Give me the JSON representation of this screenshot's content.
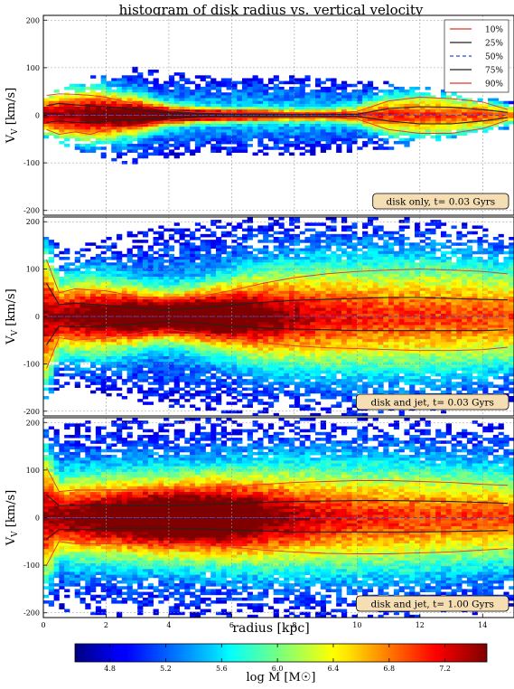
{
  "chart_data": {
    "type": "heatmap",
    "title": "histogram of disk radius vs. vertical velocity",
    "xlabel": "radius [kpc]",
    "ylabel": "V_V [km/s]",
    "xlim": [
      0,
      15
    ],
    "ylim": [
      -210,
      210
    ],
    "x_ticks": [
      0,
      2,
      4,
      6,
      8,
      10,
      12,
      14
    ],
    "y_ticks": [
      -200,
      -100,
      0,
      100,
      200
    ],
    "grid": true,
    "legend_position": "top-right",
    "legend": [
      {
        "label": "10%",
        "color": "#e8332a",
        "style": "solid"
      },
      {
        "label": "25%",
        "color": "#222222",
        "style": "solid"
      },
      {
        "label": "50%",
        "color": "#3347d8",
        "style": "dashed"
      },
      {
        "label": "75%",
        "color": "#222222",
        "style": "solid"
      },
      {
        "label": "90%",
        "color": "#e8332a",
        "style": "solid"
      }
    ],
    "colorbar": {
      "label": "log M [M☉]",
      "min": 4.55,
      "max": 7.5,
      "ticks": [
        4.8,
        5.2,
        5.6,
        6.0,
        6.4,
        6.8,
        7.2
      ]
    },
    "panels": [
      {
        "annotation": "disk only, t= 0.03 Gyrs",
        "x": [
          0.1,
          0.5,
          1,
          1.5,
          2,
          2.5,
          3,
          3.5,
          4,
          5,
          6,
          7,
          8,
          9,
          10,
          11,
          12,
          13,
          14,
          14.8
        ],
        "p10": [
          -30,
          -40,
          -35,
          -40,
          -30,
          -25,
          -22,
          -15,
          -10,
          -6,
          -5,
          -5,
          -4,
          -5,
          -8,
          -30,
          -38,
          -38,
          -28,
          -10
        ],
        "p25": [
          -15,
          -12,
          -15,
          -15,
          -13,
          -10,
          -10,
          -6,
          -4,
          -3,
          -2,
          -2,
          -2,
          -2,
          -2,
          -12,
          -18,
          -18,
          -12,
          -5
        ],
        "p50": [
          0,
          0,
          0,
          0,
          0,
          0,
          0,
          0,
          0,
          0,
          0,
          0,
          0,
          0,
          0,
          0,
          0,
          0,
          0,
          0
        ],
        "p75": [
          20,
          25,
          22,
          20,
          18,
          15,
          12,
          8,
          5,
          3,
          2,
          2,
          2,
          2,
          2,
          14,
          18,
          17,
          12,
          6
        ],
        "p90": [
          42,
          45,
          44,
          42,
          38,
          30,
          24,
          16,
          10,
          6,
          5,
          5,
          4,
          5,
          8,
          30,
          38,
          35,
          28,
          12
        ],
        "spread": [
          45,
          60,
          70,
          80,
          90,
          100,
          100,
          95,
          90,
          85,
          85,
          85,
          85,
          80,
          75,
          70,
          60,
          50,
          40,
          30
        ]
      },
      {
        "annotation": "disk and jet, t= 0.03 Gyrs",
        "x": [
          0.1,
          0.5,
          1,
          1.5,
          2,
          2.5,
          3,
          3.5,
          4,
          5,
          6,
          7,
          8,
          9,
          10,
          11,
          12,
          13,
          14,
          14.8
        ],
        "p10": [
          -110,
          -45,
          -50,
          -48,
          -45,
          -40,
          -35,
          -30,
          -28,
          -35,
          -45,
          -55,
          -62,
          -66,
          -68,
          -70,
          -72,
          -72,
          -70,
          -65
        ],
        "p25": [
          -60,
          -20,
          -22,
          -22,
          -20,
          -18,
          -15,
          -12,
          -10,
          -14,
          -20,
          -24,
          -27,
          -28,
          -30,
          -30,
          -30,
          -30,
          -30,
          -28
        ],
        "p50": [
          0,
          0,
          0,
          0,
          0,
          0,
          0,
          0,
          0,
          0,
          0,
          0,
          0,
          0,
          0,
          0,
          0,
          0,
          0,
          0
        ],
        "p75": [
          70,
          25,
          28,
          26,
          24,
          20,
          18,
          15,
          14,
          18,
          24,
          30,
          34,
          36,
          38,
          40,
          40,
          38,
          36,
          35
        ],
        "p90": [
          120,
          50,
          58,
          56,
          54,
          48,
          42,
          38,
          35,
          42,
          55,
          70,
          82,
          90,
          95,
          98,
          100,
          98,
          95,
          90
        ],
        "spread": [
          180,
          150,
          150,
          160,
          170,
          175,
          180,
          190,
          195,
          200,
          205,
          210,
          210,
          210,
          210,
          210,
          205,
          200,
          190,
          180
        ]
      },
      {
        "annotation": "disk and jet, t= 1.00 Gyrs",
        "x": [
          0.1,
          0.5,
          1,
          1.5,
          2,
          2.5,
          3,
          3.5,
          4,
          5,
          6,
          7,
          8,
          9,
          10,
          11,
          12,
          13,
          14,
          14.8
        ],
        "p10": [
          -100,
          -50,
          -55,
          -55,
          -55,
          -55,
          -55,
          -55,
          -55,
          -58,
          -62,
          -68,
          -72,
          -75,
          -76,
          -76,
          -74,
          -72,
          -68,
          -65
        ],
        "p25": [
          -45,
          -25,
          -25,
          -25,
          -22,
          -22,
          -22,
          -22,
          -22,
          -24,
          -26,
          -28,
          -30,
          -30,
          -30,
          -30,
          -30,
          -29,
          -28,
          -27
        ],
        "p50": [
          0,
          0,
          0,
          0,
          0,
          0,
          0,
          0,
          0,
          0,
          0,
          0,
          0,
          0,
          0,
          0,
          0,
          0,
          0,
          0
        ],
        "p75": [
          48,
          25,
          26,
          26,
          26,
          25,
          25,
          25,
          25,
          27,
          30,
          32,
          34,
          35,
          36,
          36,
          35,
          34,
          32,
          30
        ],
        "p90": [
          105,
          55,
          58,
          58,
          58,
          58,
          58,
          58,
          58,
          62,
          66,
          70,
          74,
          76,
          78,
          78,
          76,
          74,
          70,
          68
        ],
        "spread": [
          190,
          195,
          200,
          205,
          205,
          210,
          210,
          210,
          210,
          210,
          210,
          210,
          210,
          210,
          210,
          210,
          210,
          205,
          200,
          195
        ]
      }
    ]
  }
}
